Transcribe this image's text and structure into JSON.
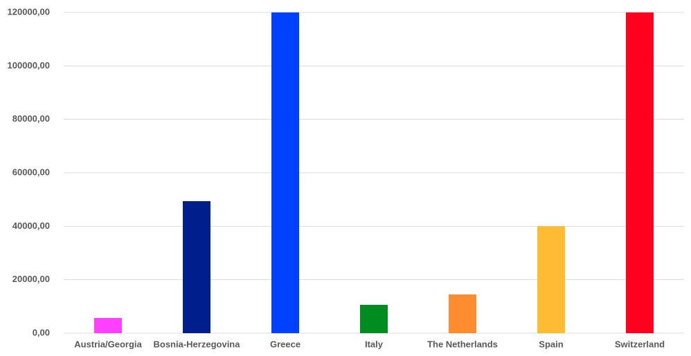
{
  "chart_data": {
    "type": "bar",
    "categories": [
      "Austria/Georgia",
      "Bosnia-Herzegovina",
      "Greece",
      "Italy",
      "The Netherlands",
      "Spain",
      "Switzerland"
    ],
    "values": [
      5700,
      49400,
      120000,
      10600,
      14500,
      40000,
      120000
    ],
    "colors": [
      "#ff40ff",
      "#001f8c",
      "#0040ff",
      "#008c21",
      "#ff8c2f",
      "#ffbb33",
      "#ff001f"
    ],
    "ylim": [
      0,
      120000
    ],
    "yticks": [
      {
        "value": 0,
        "label": "0,00"
      },
      {
        "value": 20000,
        "label": "20000,00"
      },
      {
        "value": 40000,
        "label": "40000,00"
      },
      {
        "value": 60000,
        "label": "60000,00"
      },
      {
        "value": 80000,
        "label": "80000,00"
      },
      {
        "value": 100000,
        "label": "100000,00"
      },
      {
        "value": 120000,
        "label": "120000,00"
      }
    ],
    "grid": true
  }
}
